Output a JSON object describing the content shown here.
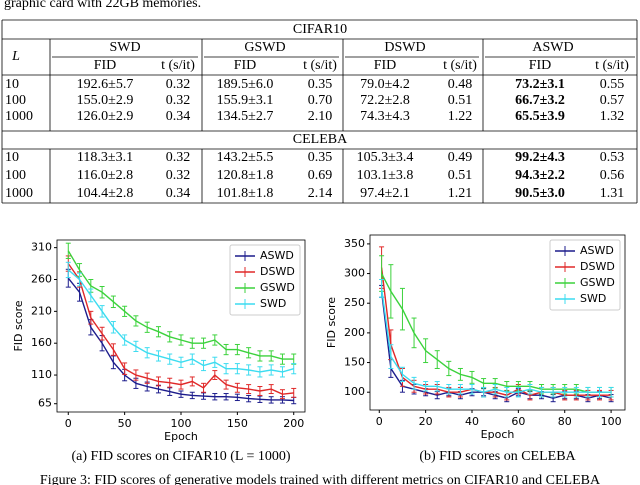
{
  "text_top": "graphic card with 22GB memories.",
  "table": {
    "corner": "L",
    "groups": [
      "SWD",
      "GSWD",
      "DSWD",
      "ASWD"
    ],
    "subheaders": [
      "FID",
      "t (s/it)",
      "FID",
      "t (s/it)",
      "FID",
      "t (s/it)",
      "FID",
      "t (s/it)"
    ],
    "sections": [
      {
        "title": "CIFAR10",
        "rows": [
          [
            "10",
            "192.6±5.7",
            "0.32",
            "189.5±6.0",
            "0.35",
            "79.0±4.2",
            "0.48",
            "73.2±3.1",
            "0.55"
          ],
          [
            "100",
            "155.0±2.9",
            "0.32",
            "155.9±3.1",
            "0.70",
            "72.2±2.8",
            "0.51",
            "66.7±3.2",
            "0.57"
          ],
          [
            "1000",
            "126.0±2.9",
            "0.34",
            "134.5±2.7",
            "2.10",
            "74.3±4.3",
            "1.22",
            "65.5±3.9",
            "1.32"
          ]
        ]
      },
      {
        "title": "CELEBA",
        "rows": [
          [
            "10",
            "118.3±3.1",
            "0.32",
            "143.2±5.5",
            "0.35",
            "105.3±3.4",
            "0.49",
            "99.2±4.3",
            "0.53"
          ],
          [
            "100",
            "116.0±2.8",
            "0.32",
            "120.8±1.8",
            "0.69",
            "103.1±3.8",
            "0.51",
            "94.3±2.2",
            "0.56"
          ],
          [
            "1000",
            "104.4±2.8",
            "0.34",
            "101.8±1.8",
            "2.14",
            "97.4±2.1",
            "1.21",
            "90.5±3.0",
            "1.31"
          ]
        ]
      }
    ]
  },
  "chart_data": [
    {
      "type": "line",
      "xlabel": "Epoch",
      "ylabel": "FID score",
      "caption": "(a) FID scores on CIFAR10 (L = 1000)",
      "legend": "upper right",
      "x": [
        0,
        10,
        20,
        30,
        40,
        50,
        60,
        70,
        80,
        90,
        100,
        110,
        120,
        130,
        140,
        150,
        160,
        170,
        180,
        190,
        200
      ],
      "xlim": [
        -10,
        210
      ],
      "xticks": [
        0,
        50,
        100,
        150,
        200
      ],
      "ylim": [
        52,
        322
      ],
      "yticks": [
        65,
        110,
        160,
        210,
        260,
        310
      ],
      "series": [
        {
          "name": "ASWD",
          "color": "#1c1c8c",
          "values": [
            262,
            240,
            185,
            160,
            130,
            110,
            97,
            92,
            88,
            84,
            80,
            78,
            77,
            76,
            76,
            75,
            73,
            72,
            71,
            71,
            70
          ],
          "errors": [
            14,
            14,
            12,
            12,
            10,
            9,
            8,
            7,
            6,
            6,
            5,
            5,
            5,
            5,
            5,
            5,
            5,
            5,
            5,
            5,
            5
          ]
        },
        {
          "name": "DSWD",
          "color": "#e02828",
          "values": [
            285,
            260,
            200,
            175,
            150,
            120,
            110,
            105,
            100,
            98,
            95,
            100,
            90,
            110,
            95,
            90,
            88,
            85,
            88,
            80,
            82
          ],
          "errors": [
            12,
            12,
            10,
            10,
            9,
            9,
            8,
            8,
            7,
            7,
            7,
            7,
            7,
            7,
            7,
            7,
            7,
            7,
            7,
            7,
            7
          ]
        },
        {
          "name": "GSWD",
          "color": "#3cd23c",
          "values": [
            305,
            275,
            250,
            240,
            225,
            210,
            195,
            185,
            178,
            170,
            165,
            160,
            160,
            165,
            150,
            150,
            145,
            140,
            140,
            135,
            135
          ],
          "errors": [
            12,
            10,
            10,
            9,
            9,
            8,
            8,
            8,
            8,
            8,
            8,
            8,
            8,
            8,
            8,
            8,
            8,
            8,
            8,
            8,
            8
          ]
        },
        {
          "name": "SWD",
          "color": "#3cdcf0",
          "values": [
            275,
            260,
            235,
            210,
            185,
            165,
            155,
            145,
            140,
            135,
            130,
            135,
            125,
            130,
            120,
            120,
            118,
            115,
            118,
            115,
            120
          ],
          "errors": [
            12,
            10,
            10,
            9,
            9,
            8,
            8,
            8,
            8,
            8,
            8,
            8,
            8,
            8,
            8,
            8,
            8,
            8,
            8,
            8,
            8
          ]
        }
      ]
    },
    {
      "type": "line",
      "xlabel": "Epoch",
      "ylabel": "FID score",
      "caption": "(b) FID scores on CELEBA",
      "legend": "upper right",
      "x": [
        1,
        5,
        10,
        15,
        20,
        25,
        30,
        35,
        40,
        45,
        50,
        55,
        60,
        65,
        70,
        75,
        80,
        85,
        90,
        95,
        100
      ],
      "xlim": [
        -4,
        106
      ],
      "xticks": [
        0,
        20,
        40,
        60,
        80,
        100
      ],
      "ylim": [
        70,
        365
      ],
      "yticks": [
        100,
        150,
        200,
        250,
        300,
        350
      ],
      "series": [
        {
          "name": "ASWD",
          "color": "#1c1c8c",
          "values": [
            270,
            140,
            110,
            105,
            100,
            95,
            100,
            95,
            100,
            100,
            95,
            90,
            100,
            95,
            95,
            90,
            95,
            95,
            90,
            95,
            90
          ],
          "errors": [
            10,
            15,
            10,
            8,
            6,
            6,
            6,
            6,
            6,
            6,
            6,
            6,
            6,
            6,
            6,
            6,
            6,
            6,
            6,
            6,
            6
          ]
        },
        {
          "name": "DSWD",
          "color": "#e02828",
          "values": [
            310,
            180,
            125,
            110,
            105,
            105,
            100,
            100,
            105,
            100,
            100,
            95,
            105,
            95,
            100,
            100,
            95,
            95,
            95,
            95,
            95
          ],
          "errors": [
            35,
            25,
            15,
            10,
            8,
            8,
            8,
            8,
            8,
            8,
            8,
            8,
            8,
            8,
            8,
            8,
            8,
            8,
            8,
            8,
            8
          ]
        },
        {
          "name": "GSWD",
          "color": "#3cd23c",
          "values": [
            300,
            270,
            240,
            200,
            170,
            155,
            140,
            130,
            125,
            115,
            115,
            110,
            110,
            110,
            105,
            105,
            105,
            105,
            100,
            100,
            100
          ],
          "errors": [
            30,
            45,
            35,
            25,
            20,
            15,
            12,
            10,
            10,
            8,
            8,
            8,
            8,
            8,
            8,
            8,
            8,
            8,
            8,
            8,
            8
          ]
        },
        {
          "name": "SWD",
          "color": "#3cdcf0",
          "values": [
            275,
            160,
            130,
            115,
            110,
            110,
            105,
            105,
            105,
            100,
            105,
            100,
            100,
            105,
            100,
            100,
            100,
            100,
            100,
            100,
            100
          ],
          "errors": [
            15,
            20,
            12,
            10,
            8,
            8,
            8,
            8,
            8,
            8,
            8,
            8,
            8,
            8,
            8,
            8,
            8,
            8,
            8,
            8,
            8
          ]
        }
      ]
    }
  ],
  "figure_caption": "Figure 3: FID scores of generative models trained with different metrics on CIFAR10 and CELEBA"
}
